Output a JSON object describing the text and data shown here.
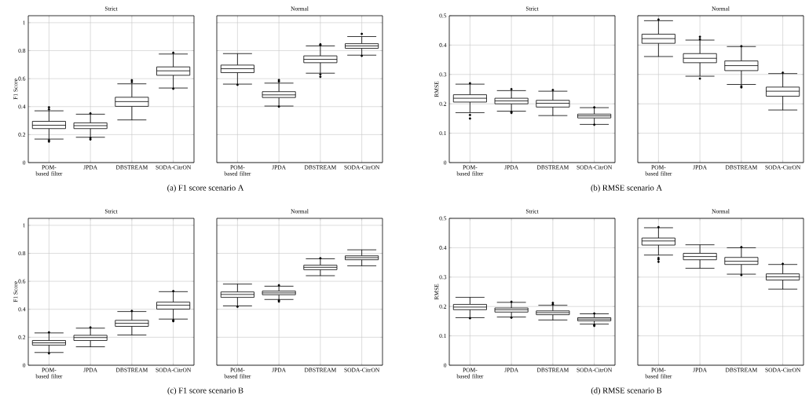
{
  "chart_data": [
    {
      "type": "box",
      "title": "Strict",
      "ylabel": "F1 Score",
      "categories": [
        "POM-based filter",
        "JPDA",
        "DBSTREAM",
        "SODA-CitrON"
      ],
      "ylim": [
        0,
        1.05
      ],
      "yticks": [
        0,
        0.2,
        0.4,
        0.6,
        0.8,
        1
      ],
      "grid": true,
      "annotations": [
        "(a) F1 score scenario A"
      ],
      "boxes": [
        {
          "low": 0.168,
          "q1": 0.243,
          "median": 0.267,
          "q3": 0.295,
          "high": 0.37,
          "outliers": [
            0.395,
            0.38,
            0.16,
            0.15
          ]
        },
        {
          "low": 0.181,
          "q1": 0.243,
          "median": 0.264,
          "q3": 0.284,
          "high": 0.346,
          "outliers": [
            0.352,
            0.175,
            0.165
          ]
        },
        {
          "low": 0.305,
          "q1": 0.402,
          "median": 0.436,
          "q3": 0.467,
          "high": 0.563,
          "outliers": [
            0.589,
            0.576
          ]
        },
        {
          "low": 0.533,
          "q1": 0.624,
          "median": 0.656,
          "q3": 0.684,
          "high": 0.776,
          "outliers": [
            0.785,
            0.528
          ]
        }
      ]
    },
    {
      "type": "box",
      "title": "Normal",
      "categories": [
        "POM-based filter",
        "JPDA",
        "DBSTREAM",
        "SODA-CitrON"
      ],
      "ylim": [
        0,
        1.05
      ],
      "yticks": [
        0,
        0.2,
        0.4,
        0.6,
        0.8,
        1
      ],
      "grid": true,
      "tick_labels": "x",
      "boxes": [
        {
          "low": 0.561,
          "q1": 0.643,
          "median": 0.671,
          "q3": 0.697,
          "high": 0.779,
          "outliers": [
            0.556
          ]
        },
        {
          "low": 0.404,
          "q1": 0.465,
          "median": 0.484,
          "q3": 0.507,
          "high": 0.568,
          "outliers": [
            0.59,
            0.58,
            0.4
          ]
        },
        {
          "low": 0.639,
          "q1": 0.714,
          "median": 0.738,
          "q3": 0.763,
          "high": 0.834,
          "outliers": [
            0.846,
            0.84,
            0.63,
            0.613
          ]
        },
        {
          "low": 0.768,
          "q1": 0.817,
          "median": 0.834,
          "q3": 0.85,
          "high": 0.901,
          "outliers": [
            0.92,
            0.763
          ]
        }
      ]
    },
    {
      "type": "box",
      "title": "Strict",
      "ylabel": "RMSE",
      "categories": [
        "POM-based filter",
        "JPDA",
        "DBSTREAM",
        "SODA-CitrON"
      ],
      "ylim": [
        0,
        0.5
      ],
      "yticks": [
        0,
        0.1,
        0.2,
        0.3,
        0.4,
        0.5
      ],
      "grid": true,
      "annotations": [
        "(b) RMSE scenario A"
      ],
      "boxes": [
        {
          "low": 0.17,
          "q1": 0.206,
          "median": 0.219,
          "q3": 0.231,
          "high": 0.267,
          "outliers": [
            0.27,
            0.162,
            0.15
          ]
        },
        {
          "low": 0.175,
          "q1": 0.2,
          "median": 0.21,
          "q3": 0.219,
          "high": 0.245,
          "outliers": [
            0.25,
            0.172,
            0.169
          ]
        },
        {
          "low": 0.16,
          "q1": 0.189,
          "median": 0.202,
          "q3": 0.212,
          "high": 0.243,
          "outliers": [
            0.247
          ]
        },
        {
          "low": 0.13,
          "q1": 0.152,
          "median": 0.159,
          "q3": 0.165,
          "high": 0.187,
          "outliers": [
            0.188,
            0.129
          ]
        }
      ]
    },
    {
      "type": "box",
      "title": "Normal",
      "categories": [
        "POM-based filter",
        "JPDA",
        "DBSTREAM",
        "SODA-CitrON"
      ],
      "ylim": [
        0,
        0.5
      ],
      "yticks": [
        0,
        0.1,
        0.2,
        0.3,
        0.4,
        0.5
      ],
      "grid": true,
      "tick_labels": "x",
      "boxes": [
        {
          "low": 0.361,
          "q1": 0.406,
          "median": 0.422,
          "q3": 0.437,
          "high": 0.483,
          "outliers": [
            0.487
          ]
        },
        {
          "low": 0.294,
          "q1": 0.34,
          "median": 0.355,
          "q3": 0.371,
          "high": 0.417,
          "outliers": [
            0.428,
            0.42,
            0.286
          ]
        },
        {
          "low": 0.266,
          "q1": 0.313,
          "median": 0.33,
          "q3": 0.346,
          "high": 0.395,
          "outliers": [
            0.396,
            0.26,
            0.256
          ]
        },
        {
          "low": 0.179,
          "q1": 0.226,
          "median": 0.243,
          "q3": 0.257,
          "high": 0.303,
          "outliers": [
            0.306
          ]
        }
      ]
    },
    {
      "type": "box",
      "title": "Strict",
      "ylabel": "F1 Score",
      "categories": [
        "POM-based filter",
        "JPDA",
        "DBSTREAM",
        "SODA-CitrON"
      ],
      "ylim": [
        0,
        1.05
      ],
      "yticks": [
        0,
        0.2,
        0.4,
        0.6,
        0.8,
        1
      ],
      "grid": true,
      "annotations": [
        "(c) F1 score scenario B"
      ],
      "boxes": [
        {
          "low": 0.091,
          "q1": 0.144,
          "median": 0.16,
          "q3": 0.177,
          "high": 0.231,
          "outliers": [
            0.235,
            0.085
          ]
        },
        {
          "low": 0.132,
          "q1": 0.177,
          "median": 0.198,
          "q3": 0.214,
          "high": 0.265,
          "outliers": [
            0.27
          ]
        },
        {
          "low": 0.216,
          "q1": 0.278,
          "median": 0.3,
          "q3": 0.321,
          "high": 0.384,
          "outliers": [
            0.388
          ]
        },
        {
          "low": 0.33,
          "q1": 0.401,
          "median": 0.429,
          "q3": 0.451,
          "high": 0.526,
          "outliers": [
            0.53,
            0.322,
            0.315
          ]
        }
      ]
    },
    {
      "type": "box",
      "title": "Normal",
      "categories": [
        "POM-based filter",
        "JPDA",
        "DBSTREAM",
        "SODA-CitrON"
      ],
      "ylim": [
        0,
        1.05
      ],
      "yticks": [
        0,
        0.2,
        0.4,
        0.6,
        0.8,
        1
      ],
      "grid": true,
      "tick_labels": "x",
      "boxes": [
        {
          "low": 0.424,
          "q1": 0.485,
          "median": 0.506,
          "q3": 0.524,
          "high": 0.58,
          "outliers": [
            0.418
          ]
        },
        {
          "low": 0.47,
          "q1": 0.504,
          "median": 0.517,
          "q3": 0.53,
          "high": 0.565,
          "outliers": [
            0.572,
            0.463,
            0.455
          ]
        },
        {
          "low": 0.64,
          "q1": 0.683,
          "median": 0.7,
          "q3": 0.715,
          "high": 0.761,
          "outliers": [
            0.765
          ]
        },
        {
          "low": 0.711,
          "q1": 0.754,
          "median": 0.769,
          "q3": 0.782,
          "high": 0.825
        }
      ]
    },
    {
      "type": "box",
      "title": "Strict",
      "ylabel": "RMSE",
      "categories": [
        "POM-based filter",
        "JPDA",
        "DBSTREAM",
        "SODA-CitrON"
      ],
      "ylim": [
        0,
        0.5
      ],
      "yticks": [
        0,
        0.1,
        0.2,
        0.3,
        0.4,
        0.5
      ],
      "grid": true,
      "annotations": [
        "(d) RMSE scenario B"
      ],
      "boxes": [
        {
          "low": 0.162,
          "q1": 0.189,
          "median": 0.198,
          "q3": 0.207,
          "high": 0.231,
          "outliers": [
            0.16
          ]
        },
        {
          "low": 0.164,
          "q1": 0.181,
          "median": 0.189,
          "q3": 0.195,
          "high": 0.214,
          "outliers": [
            0.216,
            0.162
          ]
        },
        {
          "low": 0.154,
          "q1": 0.172,
          "median": 0.179,
          "q3": 0.185,
          "high": 0.204,
          "outliers": [
            0.212,
            0.207
          ]
        },
        {
          "low": 0.14,
          "q1": 0.151,
          "median": 0.157,
          "q3": 0.162,
          "high": 0.175,
          "outliers": [
            0.176,
            0.137,
            0.134
          ]
        }
      ]
    },
    {
      "type": "box",
      "title": "Normal",
      "categories": [
        "POM-based filter",
        "JPDA",
        "DBSTREAM",
        "SODA-CitrON"
      ],
      "ylim": [
        0,
        0.5
      ],
      "yticks": [
        0,
        0.1,
        0.2,
        0.3,
        0.4,
        0.5
      ],
      "grid": true,
      "tick_labels": "x",
      "boxes": [
        {
          "low": 0.375,
          "q1": 0.409,
          "median": 0.423,
          "q3": 0.433,
          "high": 0.468,
          "outliers": [
            0.47,
            0.365,
            0.36,
            0.352
          ]
        },
        {
          "low": 0.33,
          "q1": 0.359,
          "median": 0.37,
          "q3": 0.381,
          "high": 0.41
        },
        {
          "low": 0.31,
          "q1": 0.343,
          "median": 0.354,
          "q3": 0.367,
          "high": 0.4,
          "outliers": [
            0.402,
            0.307
          ]
        },
        {
          "low": 0.259,
          "q1": 0.29,
          "median": 0.301,
          "q3": 0.311,
          "high": 0.343,
          "outliers": [
            0.345
          ]
        }
      ]
    }
  ]
}
